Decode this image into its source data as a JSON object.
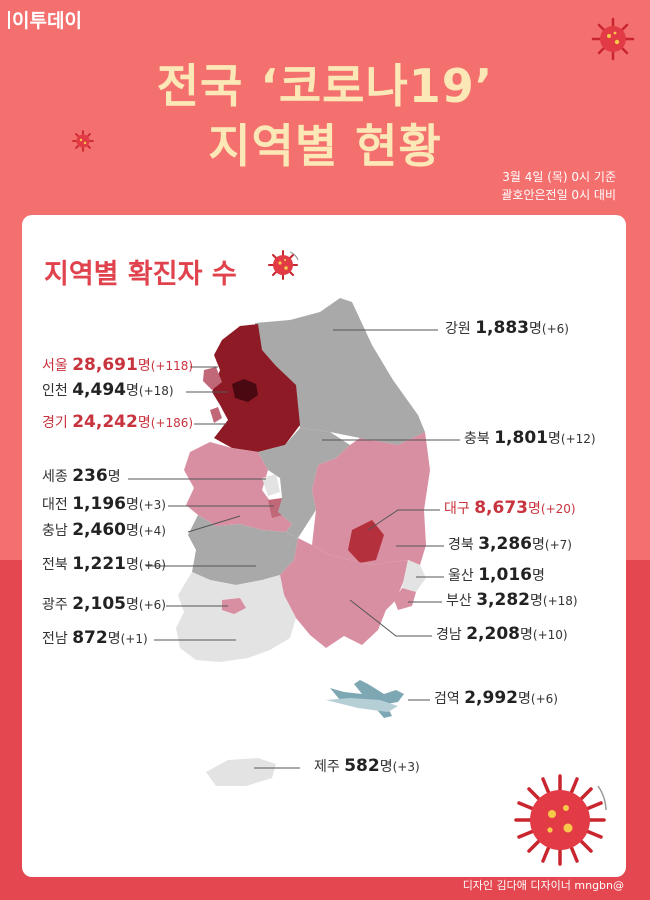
{
  "brand": "이투데이",
  "title_line1": "전국 ‘코로나19’",
  "title_line2": "지역별 현황",
  "basis_line1": "3월 4일 (목) 0시 기준",
  "basis_line2": "괄호안은전일 0시 대비",
  "card_title": "지역별 확진자 수",
  "regions": [
    {
      "id": "gangwon",
      "name": "강원",
      "count": "1,883",
      "unit": "명",
      "delta": "(+6)"
    },
    {
      "id": "seoul",
      "name": "서울",
      "count": "28,691",
      "unit": "명",
      "delta": "(+118)"
    },
    {
      "id": "incheon",
      "name": "인천",
      "count": "4,494",
      "unit": "명",
      "delta": "(+18)"
    },
    {
      "id": "gyeonggi",
      "name": "경기",
      "count": "24,242",
      "unit": "명",
      "delta": "(+186)"
    },
    {
      "id": "chungbuk",
      "name": "충북",
      "count": "1,801",
      "unit": "명",
      "delta": "(+12)"
    },
    {
      "id": "sejong",
      "name": "세종",
      "count": "236",
      "unit": "명",
      "delta": ""
    },
    {
      "id": "daejeon",
      "name": "대전",
      "count": "1,196",
      "unit": "명",
      "delta": "(+3)"
    },
    {
      "id": "daegu",
      "name": "대구",
      "count": "8,673",
      "unit": "명",
      "delta": "(+20)"
    },
    {
      "id": "chungnam",
      "name": "충남",
      "count": "2,460",
      "unit": "명",
      "delta": "(+4)"
    },
    {
      "id": "gyeongbuk",
      "name": "경북",
      "count": "3,286",
      "unit": "명",
      "delta": "(+7)"
    },
    {
      "id": "jeonbuk",
      "name": "전북",
      "count": "1,221",
      "unit": "명",
      "delta": "(+6)"
    },
    {
      "id": "ulsan",
      "name": "울산",
      "count": "1,016",
      "unit": "명",
      "delta": ""
    },
    {
      "id": "gwangju",
      "name": "광주",
      "count": "2,105",
      "unit": "명",
      "delta": "(+6)"
    },
    {
      "id": "busan",
      "name": "부산",
      "count": "3,282",
      "unit": "명",
      "delta": "(+18)"
    },
    {
      "id": "jeonnam",
      "name": "전남",
      "count": "872",
      "unit": "명",
      "delta": "(+1)"
    },
    {
      "id": "gyeongnam",
      "name": "경남",
      "count": "2,208",
      "unit": "명",
      "delta": "(+10)"
    },
    {
      "id": "quarantine",
      "name": "검역",
      "count": "2,992",
      "unit": "명",
      "delta": "(+6)"
    },
    {
      "id": "jeju",
      "name": "제주",
      "count": "582",
      "unit": "명",
      "delta": "(+3)"
    }
  ],
  "credit": "디자인 김다애 디자이너 mngbn@",
  "colors": {
    "background": "#f4706f",
    "title": "#fbe8b6",
    "highlight_text": "#c8343e",
    "map_dark": "#8e1a26",
    "map_pink": "#d98fa2",
    "map_gray": "#a9a9a9",
    "map_light": "#e3e3e3"
  },
  "icons": [
    "virus-icon",
    "airplane-icon"
  ]
}
